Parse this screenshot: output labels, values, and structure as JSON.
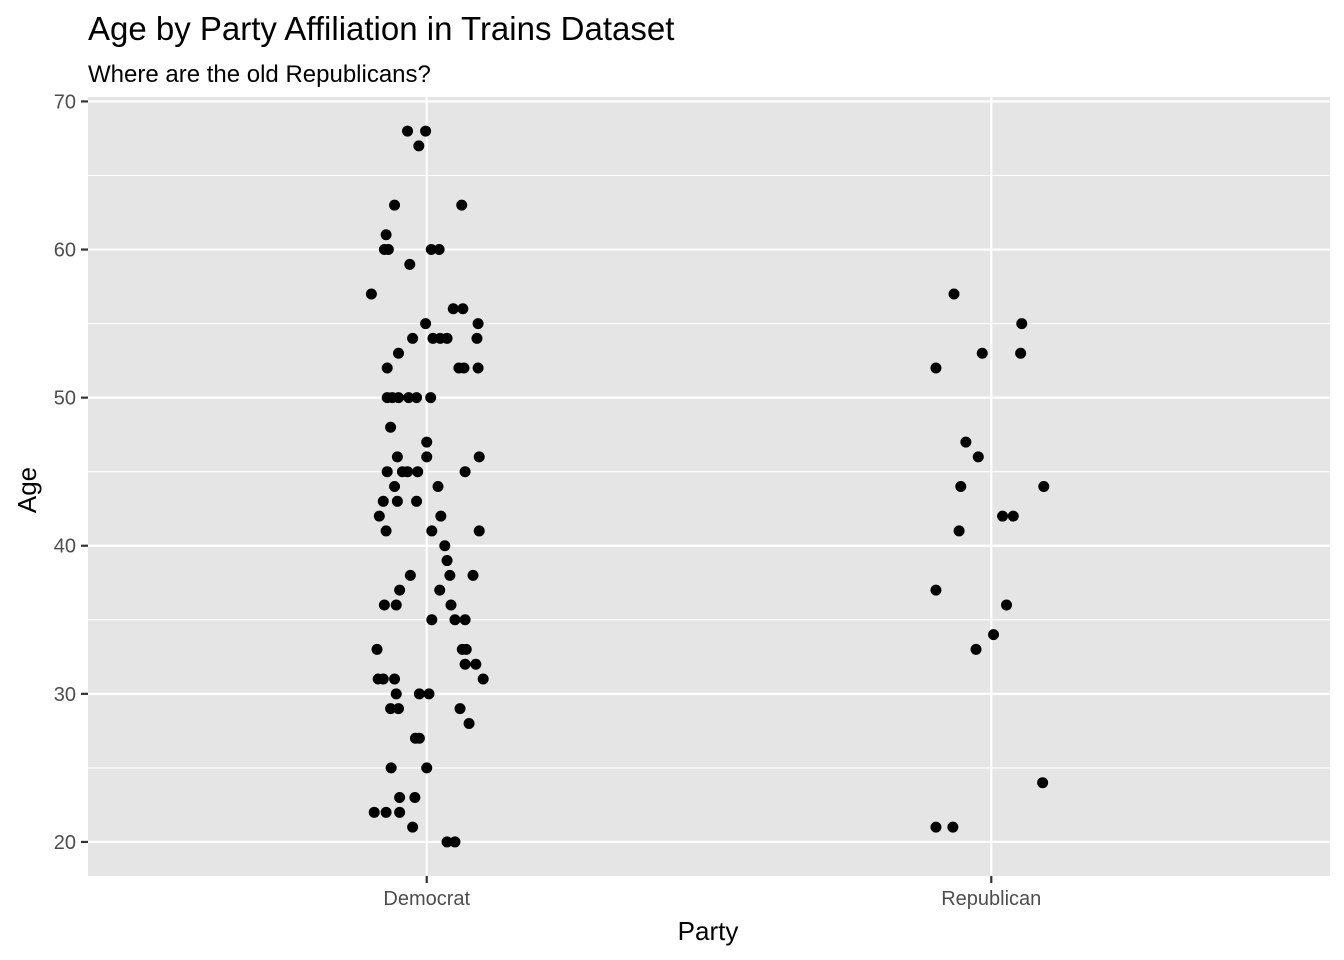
{
  "chart_data": {
    "type": "scatter",
    "title": "Age by Party Affiliation in Trains Dataset",
    "subtitle": "Where are the old Republicans?",
    "xlabel": "Party",
    "ylabel": "Age",
    "categories": [
      "Democrat",
      "Republican"
    ],
    "ylim": [
      17.7,
      70.3
    ],
    "yticks": [
      20,
      30,
      40,
      50,
      60,
      70
    ],
    "grid": true,
    "jitter": "horizontal",
    "colors": {
      "panel": "#e5e5e5",
      "grid": "#ffffff",
      "point": "#000000",
      "tick": "#4d4d4d"
    },
    "series": [
      {
        "category": "Democrat",
        "points": [
          {
            "jitter": -0.034,
            "y": 68
          },
          {
            "jitter": -0.002,
            "y": 68
          },
          {
            "jitter": -0.014,
            "y": 67
          },
          {
            "jitter": -0.057,
            "y": 63
          },
          {
            "jitter": 0.062,
            "y": 63
          },
          {
            "jitter": -0.072,
            "y": 61
          },
          {
            "jitter": -0.075,
            "y": 60
          },
          {
            "jitter": -0.068,
            "y": 60
          },
          {
            "jitter": 0.008,
            "y": 60
          },
          {
            "jitter": 0.022,
            "y": 60
          },
          {
            "jitter": -0.03,
            "y": 59
          },
          {
            "jitter": -0.098,
            "y": 57
          },
          {
            "jitter": 0.047,
            "y": 56
          },
          {
            "jitter": 0.064,
            "y": 56
          },
          {
            "jitter": -0.002,
            "y": 55
          },
          {
            "jitter": 0.091,
            "y": 55
          },
          {
            "jitter": -0.025,
            "y": 54
          },
          {
            "jitter": 0.011,
            "y": 54
          },
          {
            "jitter": 0.024,
            "y": 54
          },
          {
            "jitter": 0.036,
            "y": 54
          },
          {
            "jitter": 0.089,
            "y": 54
          },
          {
            "jitter": -0.05,
            "y": 53
          },
          {
            "jitter": -0.07,
            "y": 52
          },
          {
            "jitter": 0.057,
            "y": 52
          },
          {
            "jitter": 0.066,
            "y": 52
          },
          {
            "jitter": 0.091,
            "y": 52
          },
          {
            "jitter": -0.07,
            "y": 50
          },
          {
            "jitter": -0.061,
            "y": 50
          },
          {
            "jitter": -0.05,
            "y": 50
          },
          {
            "jitter": -0.032,
            "y": 50
          },
          {
            "jitter": -0.018,
            "y": 50
          },
          {
            "jitter": 0.007,
            "y": 50
          },
          {
            "jitter": -0.064,
            "y": 48
          },
          {
            "jitter": 0.0,
            "y": 47
          },
          {
            "jitter": -0.052,
            "y": 46
          },
          {
            "jitter": 0.0,
            "y": 46
          },
          {
            "jitter": 0.093,
            "y": 46
          },
          {
            "jitter": -0.07,
            "y": 45
          },
          {
            "jitter": -0.043,
            "y": 45
          },
          {
            "jitter": -0.034,
            "y": 45
          },
          {
            "jitter": -0.016,
            "y": 45
          },
          {
            "jitter": 0.068,
            "y": 45
          },
          {
            "jitter": -0.057,
            "y": 44
          },
          {
            "jitter": 0.02,
            "y": 44
          },
          {
            "jitter": -0.077,
            "y": 43
          },
          {
            "jitter": -0.052,
            "y": 43
          },
          {
            "jitter": -0.018,
            "y": 43
          },
          {
            "jitter": -0.084,
            "y": 42
          },
          {
            "jitter": 0.025,
            "y": 42
          },
          {
            "jitter": -0.072,
            "y": 41
          },
          {
            "jitter": 0.009,
            "y": 41
          },
          {
            "jitter": 0.093,
            "y": 41
          },
          {
            "jitter": 0.032,
            "y": 40
          },
          {
            "jitter": 0.036,
            "y": 39
          },
          {
            "jitter": -0.029,
            "y": 38
          },
          {
            "jitter": 0.041,
            "y": 38
          },
          {
            "jitter": 0.082,
            "y": 38
          },
          {
            "jitter": -0.048,
            "y": 37
          },
          {
            "jitter": 0.023,
            "y": 37
          },
          {
            "jitter": -0.075,
            "y": 36
          },
          {
            "jitter": -0.054,
            "y": 36
          },
          {
            "jitter": 0.043,
            "y": 36
          },
          {
            "jitter": 0.009,
            "y": 35
          },
          {
            "jitter": 0.05,
            "y": 35
          },
          {
            "jitter": 0.068,
            "y": 35
          },
          {
            "jitter": -0.088,
            "y": 33
          },
          {
            "jitter": 0.063,
            "y": 33
          },
          {
            "jitter": 0.07,
            "y": 33
          },
          {
            "jitter": 0.068,
            "y": 32
          },
          {
            "jitter": 0.087,
            "y": 32
          },
          {
            "jitter": -0.086,
            "y": 31
          },
          {
            "jitter": -0.077,
            "y": 31
          },
          {
            "jitter": -0.057,
            "y": 31
          },
          {
            "jitter": 0.1,
            "y": 31
          },
          {
            "jitter": -0.054,
            "y": 30
          },
          {
            "jitter": -0.013,
            "y": 30
          },
          {
            "jitter": 0.004,
            "y": 30
          },
          {
            "jitter": -0.064,
            "y": 29
          },
          {
            "jitter": -0.05,
            "y": 29
          },
          {
            "jitter": 0.059,
            "y": 29
          },
          {
            "jitter": 0.075,
            "y": 28
          },
          {
            "jitter": -0.02,
            "y": 27
          },
          {
            "jitter": -0.013,
            "y": 27
          },
          {
            "jitter": -0.063,
            "y": 25
          },
          {
            "jitter": 0.0,
            "y": 25
          },
          {
            "jitter": -0.048,
            "y": 23
          },
          {
            "jitter": -0.021,
            "y": 23
          },
          {
            "jitter": -0.093,
            "y": 22
          },
          {
            "jitter": -0.072,
            "y": 22
          },
          {
            "jitter": -0.048,
            "y": 22
          },
          {
            "jitter": -0.025,
            "y": 21
          },
          {
            "jitter": 0.036,
            "y": 20
          },
          {
            "jitter": 0.05,
            "y": 20
          }
        ]
      },
      {
        "category": "Republican",
        "points": [
          {
            "jitter": -0.066,
            "y": 57
          },
          {
            "jitter": 0.054,
            "y": 55
          },
          {
            "jitter": -0.016,
            "y": 53
          },
          {
            "jitter": 0.052,
            "y": 53
          },
          {
            "jitter": -0.098,
            "y": 52
          },
          {
            "jitter": -0.045,
            "y": 47
          },
          {
            "jitter": -0.023,
            "y": 46
          },
          {
            "jitter": -0.054,
            "y": 44
          },
          {
            "jitter": 0.093,
            "y": 44
          },
          {
            "jitter": 0.02,
            "y": 42
          },
          {
            "jitter": 0.039,
            "y": 42
          },
          {
            "jitter": -0.057,
            "y": 41
          },
          {
            "jitter": -0.098,
            "y": 37
          },
          {
            "jitter": 0.027,
            "y": 36
          },
          {
            "jitter": 0.004,
            "y": 34
          },
          {
            "jitter": -0.027,
            "y": 33
          },
          {
            "jitter": 0.091,
            "y": 24
          },
          {
            "jitter": -0.098,
            "y": 21
          },
          {
            "jitter": -0.068,
            "y": 21
          }
        ]
      }
    ]
  }
}
